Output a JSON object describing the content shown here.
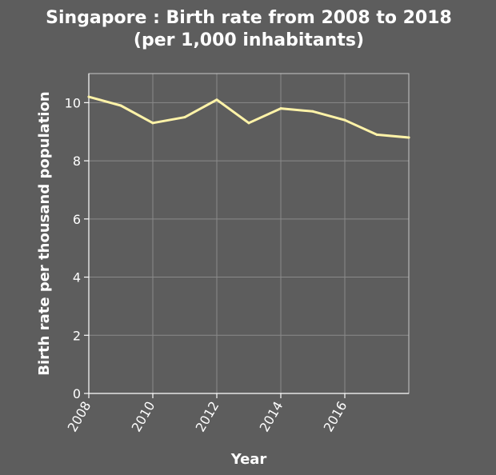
{
  "chart_data": {
    "type": "line",
    "title_line1": "Singapore : Birth rate from 2008 to 2018",
    "title_line2": "(per 1,000 inhabitants)",
    "xlabel": "Year",
    "ylabel": "Birth rate per thousand population",
    "xlim": [
      2008,
      2018
    ],
    "ylim": [
      0,
      11
    ],
    "xticks": [
      2008,
      2010,
      2012,
      2014,
      2016
    ],
    "yticks": [
      0,
      2,
      4,
      6,
      8,
      10
    ],
    "grid": true,
    "line_color": "#fff3a8",
    "background_color": "#5d5d5d",
    "x": [
      2008,
      2009,
      2010,
      2011,
      2012,
      2013,
      2014,
      2015,
      2016,
      2017,
      2018
    ],
    "values": [
      10.2,
      9.9,
      9.3,
      9.5,
      10.1,
      9.3,
      9.8,
      9.7,
      9.4,
      8.9,
      8.8
    ]
  }
}
